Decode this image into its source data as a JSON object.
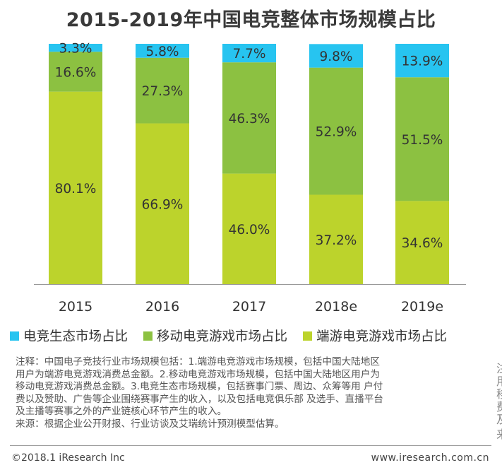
{
  "title": "2015-2019年中国电竞整体市场规模占比",
  "chart_data": {
    "type": "bar",
    "stacked": true,
    "categories": [
      "2015",
      "2016",
      "2017",
      "2018e",
      "2019e"
    ],
    "series": [
      {
        "name": "端游电竞游戏市场占比",
        "color": "#bcd32c",
        "values": [
          80.1,
          66.9,
          46.0,
          37.2,
          34.6
        ]
      },
      {
        "name": "移动电竞游戏市场占比",
        "color": "#8cc141",
        "values": [
          16.6,
          27.3,
          46.3,
          52.9,
          51.5
        ]
      },
      {
        "name": "电竞生态市场占比",
        "color": "#27c4f0",
        "values": [
          3.3,
          5.8,
          7.7,
          9.8,
          13.9
        ]
      }
    ],
    "ylim": [
      0,
      100
    ],
    "unit": "%",
    "legend_position": "bottom"
  },
  "legend": [
    {
      "label": "电竞生态市场占比",
      "color": "#27c4f0"
    },
    {
      "label": "移动电竞游戏市场占比",
      "color": "#8cc141"
    },
    {
      "label": "端游电竞游戏市场占比",
      "color": "#bcd32c"
    }
  ],
  "notes": {
    "line1": "注释：中国电子竞技行业市场规模包括：1.端游电竞游戏市场规模，包括中国大陆地区",
    "line2": "用户为端游电竞游戏消费总金额。2.移动电竞游戏市场规模，包括中国大陆地区用户为",
    "line3": "移动电竞游戏消费总金额。3.电竞生态市场规模，包括赛事门票、周边、众筹等用 户付",
    "line4": "费以及赞助、广告等企业围绕赛事产生的收入，以及包括电竞俱乐部 及选手、直播平台",
    "line5": "及主播等赛事之外的产业链核心环节产生的收入。",
    "source": "来源：根据企业公开财报、行业访谈及艾瑞统计预测模型估算。"
  },
  "footer": {
    "copyright": "©2018.1 iResearch Inc",
    "website": "www.iresearch.com.cn"
  },
  "edge_text": [
    "注",
    "用",
    "移",
    "费",
    "及",
    "来"
  ]
}
